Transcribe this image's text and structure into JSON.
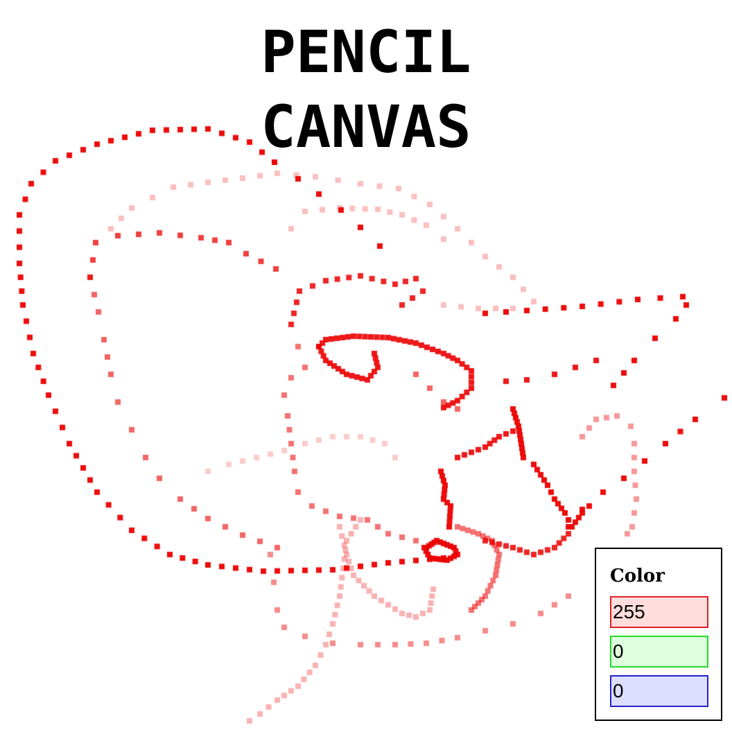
{
  "title": {
    "line1": "PENCIL",
    "line2": "CANVAS"
  },
  "panel": {
    "label": "Color",
    "red": "255",
    "green": "0",
    "blue": "0"
  },
  "colors": {
    "stroke": "#ff0000",
    "red_border": "#e02020",
    "green_border": "#22dd22",
    "blue_border": "#2222cc"
  }
}
